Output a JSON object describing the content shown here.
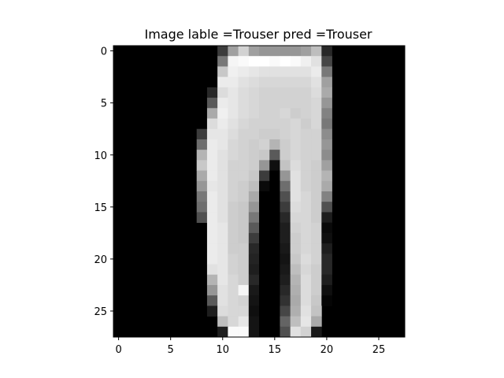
{
  "chart_data": {
    "type": "heatmap",
    "title": "Image lable =Trouser pred =Trouser",
    "xlabel": "",
    "ylabel": "",
    "colormap": "gray",
    "value_range": [
      0,
      255
    ],
    "grid": false,
    "xlim": [
      -0.5,
      27.5
    ],
    "ylim": [
      27.5,
      -0.5
    ],
    "x_ticks": [
      0,
      5,
      10,
      15,
      20,
      25
    ],
    "y_ticks": [
      0,
      5,
      10,
      15,
      20,
      25
    ],
    "x_tick_labels": [
      "0",
      "5",
      "10",
      "15",
      "20",
      "25"
    ],
    "y_tick_labels": [
      "0",
      "5",
      "10",
      "15",
      "20",
      "25"
    ],
    "pixel_columns": [
      {
        "row": 0,
        "start": 10,
        "values": [
          60,
          160,
          210,
          160,
          150,
          150,
          150,
          150,
          160,
          190,
          40
        ]
      },
      {
        "row": 1,
        "start": 10,
        "values": [
          120,
          245,
          250,
          255,
          255,
          250,
          255,
          250,
          240,
          225,
          70
        ]
      },
      {
        "row": 2,
        "start": 10,
        "values": [
          200,
          240,
          235,
          230,
          225,
          225,
          225,
          225,
          225,
          235,
          120
        ]
      },
      {
        "row": 3,
        "start": 10,
        "values": [
          235,
          235,
          225,
          220,
          215,
          215,
          215,
          215,
          215,
          225,
          160
        ]
      },
      {
        "row": 4,
        "start": 9,
        "values": [
          40,
          220,
          230,
          220,
          215,
          210,
          210,
          210,
          210,
          210,
          220,
          170
        ]
      },
      {
        "row": 5,
        "start": 9,
        "values": [
          90,
          235,
          230,
          220,
          215,
          210,
          210,
          210,
          210,
          210,
          215,
          150
        ]
      },
      {
        "row": 6,
        "start": 9,
        "values": [
          170,
          240,
          230,
          220,
          215,
          210,
          210,
          215,
          205,
          210,
          215,
          130
        ]
      },
      {
        "row": 7,
        "start": 9,
        "values": [
          220,
          235,
          225,
          215,
          210,
          210,
          210,
          210,
          215,
          205,
          215,
          120
        ]
      },
      {
        "row": 8,
        "start": 8,
        "values": [
          60,
          230,
          230,
          220,
          210,
          210,
          205,
          205,
          210,
          215,
          210,
          210,
          140
        ]
      },
      {
        "row": 9,
        "start": 8,
        "values": [
          110,
          235,
          230,
          215,
          210,
          205,
          210,
          180,
          205,
          215,
          210,
          210,
          150
        ]
      },
      {
        "row": 10,
        "start": 8,
        "values": [
          180,
          235,
          225,
          215,
          210,
          205,
          200,
          90,
          205,
          215,
          210,
          210,
          140
        ]
      },
      {
        "row": 11,
        "start": 8,
        "values": [
          200,
          235,
          225,
          210,
          210,
          205,
          150,
          15,
          195,
          220,
          210,
          205,
          160
        ]
      },
      {
        "row": 12,
        "start": 8,
        "values": [
          170,
          235,
          225,
          210,
          210,
          200,
          60,
          0,
          150,
          225,
          210,
          205,
          180
        ]
      },
      {
        "row": 13,
        "start": 8,
        "values": [
          150,
          230,
          225,
          210,
          205,
          190,
          10,
          0,
          110,
          225,
          210,
          205,
          170
        ]
      },
      {
        "row": 14,
        "start": 8,
        "values": [
          120,
          235,
          225,
          210,
          205,
          170,
          0,
          0,
          80,
          225,
          215,
          205,
          130
        ]
      },
      {
        "row": 15,
        "start": 8,
        "values": [
          110,
          235,
          225,
          205,
          200,
          150,
          0,
          0,
          60,
          220,
          215,
          205,
          80
        ]
      },
      {
        "row": 16,
        "start": 8,
        "values": [
          80,
          235,
          225,
          205,
          200,
          120,
          0,
          0,
          40,
          215,
          215,
          205,
          30
        ]
      },
      {
        "row": 17,
        "start": 9,
        "values": [
          235,
          230,
          205,
          200,
          90,
          0,
          0,
          30,
          210,
          215,
          210,
          10
        ]
      },
      {
        "row": 18,
        "start": 9,
        "values": [
          235,
          230,
          205,
          200,
          60,
          0,
          0,
          30,
          205,
          215,
          210,
          15
        ]
      },
      {
        "row": 19,
        "start": 9,
        "values": [
          235,
          230,
          205,
          205,
          40,
          0,
          0,
          25,
          205,
          215,
          210,
          30
        ]
      },
      {
        "row": 20,
        "start": 9,
        "values": [
          235,
          230,
          210,
          205,
          35,
          0,
          0,
          20,
          200,
          220,
          210,
          40
        ]
      },
      {
        "row": 21,
        "start": 9,
        "values": [
          225,
          230,
          210,
          205,
          30,
          0,
          0,
          25,
          190,
          215,
          205,
          40
        ]
      },
      {
        "row": 22,
        "start": 9,
        "values": [
          180,
          230,
          215,
          205,
          40,
          0,
          0,
          30,
          180,
          220,
          205,
          30
        ]
      },
      {
        "row": 23,
        "start": 9,
        "values": [
          150,
          225,
          215,
          245,
          25,
          0,
          0,
          40,
          175,
          220,
          205,
          15
        ]
      },
      {
        "row": 24,
        "start": 9,
        "values": [
          90,
          225,
          215,
          210,
          20,
          0,
          0,
          50,
          170,
          220,
          200,
          5
        ]
      },
      {
        "row": 25,
        "start": 9,
        "values": [
          30,
          220,
          215,
          215,
          15,
          0,
          0,
          70,
          175,
          225,
          195
        ]
      },
      {
        "row": 26,
        "start": 10,
        "values": [
          190,
          215,
          230,
          20,
          0,
          0,
          100,
          190,
          230,
          170
        ]
      },
      {
        "row": 27,
        "start": 10,
        "values": [
          30,
          250,
          250,
          20,
          0,
          0,
          80,
          225,
          210,
          25
        ]
      }
    ]
  }
}
